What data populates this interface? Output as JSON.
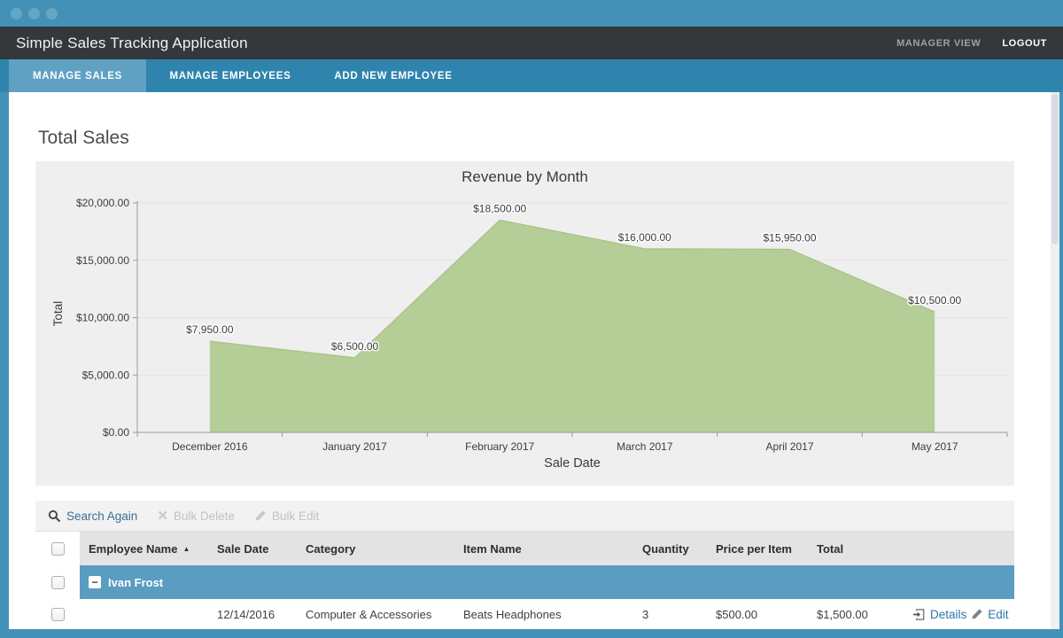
{
  "header": {
    "app_title": "Simple Sales Tracking Application",
    "manager_view_label": "MANAGER VIEW",
    "logout_label": "LOGOUT"
  },
  "nav": {
    "tabs": [
      {
        "label": "MANAGE SALES",
        "active": true
      },
      {
        "label": "MANAGE EMPLOYEES",
        "active": false
      },
      {
        "label": "ADD NEW EMPLOYEE",
        "active": false
      }
    ]
  },
  "page": {
    "heading": "Total Sales"
  },
  "chart_data": {
    "type": "area",
    "title": "Revenue by Month",
    "xlabel": "Sale Date",
    "ylabel": "Total",
    "categories": [
      "December 2016",
      "January 2017",
      "February 2017",
      "March 2017",
      "April 2017",
      "May 2017"
    ],
    "values": [
      7950,
      6500,
      18500,
      16000,
      15950,
      10500
    ],
    "value_labels": [
      "$7,950.00",
      "$6,500.00",
      "$18,500.00",
      "$16,000.00",
      "$15,950.00",
      "$10,500.00"
    ],
    "ylim": [
      0,
      20000
    ],
    "yticks": [
      {
        "value": 0,
        "label": "$0.00"
      },
      {
        "value": 5000,
        "label": "$5,000.00"
      },
      {
        "value": 10000,
        "label": "$10,000.00"
      },
      {
        "value": 15000,
        "label": "$15,000.00"
      },
      {
        "value": 20000,
        "label": "$20,000.00"
      }
    ],
    "grid": true,
    "legend": false,
    "fill_color": "#b5cd97",
    "stroke_color": "#a8c387",
    "background": "#efefef"
  },
  "toolbar": {
    "search_again_label": "Search Again",
    "bulk_delete_label": "Bulk Delete",
    "bulk_edit_label": "Bulk Edit"
  },
  "table": {
    "columns": [
      "Employee Name",
      "Sale Date",
      "Category",
      "Item Name",
      "Quantity",
      "Price per Item",
      "Total"
    ],
    "sort": {
      "column": "Employee Name",
      "direction": "asc"
    },
    "group_row": {
      "label": "Ivan Frost"
    },
    "rows": [
      {
        "employee_name": "",
        "sale_date": "12/14/2016",
        "category": "Computer & Accessories",
        "item_name": "Beats Headphones",
        "quantity": "3",
        "price_per_item": "$500.00",
        "total": "$1,500.00",
        "details_label": "Details",
        "edit_label": "Edit"
      }
    ]
  },
  "icons": {
    "sort_asc": "▲",
    "bulk_delete_x": "✕",
    "collapse": "−"
  },
  "colors": {
    "frame_blue": "#4491b8",
    "nav_blue": "#2e84ad",
    "active_tab_blue": "#5fa0c3",
    "group_row_blue": "#5b9cc1",
    "header_dark": "#34383b",
    "link_blue": "#2d76a8",
    "chart_bg": "#efefef",
    "area_green": "#b5cd97"
  }
}
